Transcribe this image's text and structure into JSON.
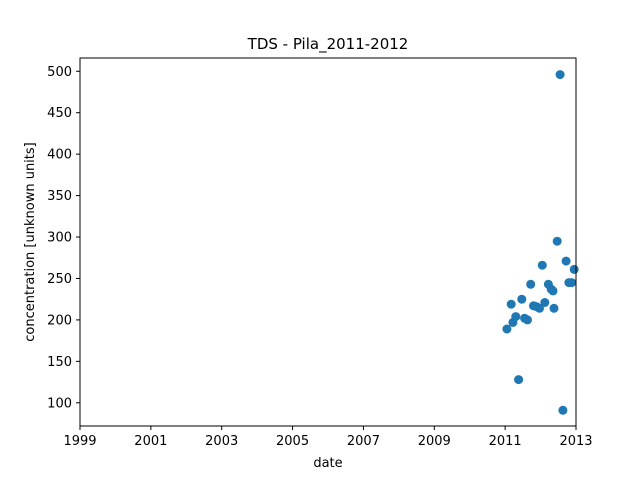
{
  "chart_data": {
    "type": "scatter",
    "title": "TDS - Pila_2011-2012",
    "xlabel": "date",
    "ylabel": "concentration [unknown units]",
    "xlim": [
      1999.0,
      2013.0
    ],
    "ylim": [
      72,
      516
    ],
    "xticks": [
      1999,
      2001,
      2003,
      2005,
      2007,
      2009,
      2011,
      2013
    ],
    "yticks": [
      100,
      150,
      200,
      250,
      300,
      350,
      400,
      450,
      500
    ],
    "grid": false,
    "color": "#1f77b4",
    "x": [
      2011.05,
      2011.17,
      2011.22,
      2011.3,
      2011.38,
      2011.47,
      2011.55,
      2011.63,
      2011.72,
      2011.8,
      2011.88,
      2011.97,
      2012.05,
      2012.12,
      2012.22,
      2012.3,
      2012.35,
      2012.38,
      2012.47,
      2012.55,
      2012.63,
      2012.72,
      2012.8,
      2012.88,
      2012.95
    ],
    "y": [
      189,
      219,
      197,
      204,
      128,
      225,
      202,
      200,
      243,
      217,
      216,
      214,
      266,
      221,
      243,
      237,
      235,
      214,
      295,
      496,
      91,
      271,
      245,
      245,
      261
    ]
  }
}
